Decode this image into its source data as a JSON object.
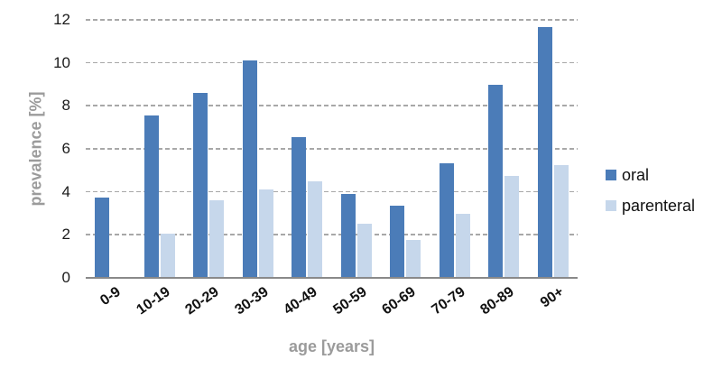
{
  "chart_data": {
    "type": "bar",
    "title": "",
    "xlabel": "age [years]",
    "ylabel": "prevalence [%]",
    "categories": [
      "0-9",
      "10-19",
      "20-29",
      "30-39",
      "40-49",
      "50-59",
      "60-69",
      "70-79",
      "80-89",
      "90+"
    ],
    "series": [
      {
        "name": "oral",
        "color": "#4b7cb8",
        "values": [
          3.75,
          7.55,
          8.6,
          10.1,
          6.55,
          3.9,
          3.35,
          5.35,
          9.0,
          11.65
        ]
      },
      {
        "name": "parenteral",
        "color": "#c6d7eb",
        "values": [
          null,
          2.05,
          3.6,
          4.1,
          4.5,
          2.5,
          1.75,
          3.0,
          4.75,
          5.25
        ]
      }
    ],
    "ylim": [
      0,
      12
    ],
    "yticks": [
      0,
      2,
      4,
      6,
      8,
      10,
      12
    ],
    "grid": "dashed-horizontal",
    "legend_position": "right",
    "bar_value_labels": false
  },
  "style": {
    "background": "#ffffff",
    "gridline_color": "#a8a8a8",
    "axis_line_color": "#898989",
    "tick_label_color": "#1a1a1a",
    "axis_title_color": "#9b9b9b",
    "legend_text_color": "#111111"
  }
}
